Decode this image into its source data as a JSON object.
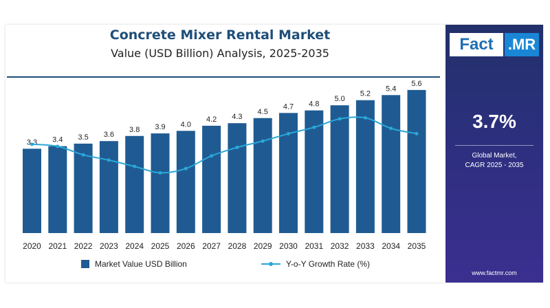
{
  "brand": {
    "logo_part1": "Fact",
    "logo_part2": ".MR",
    "website": "www.factmr.com"
  },
  "side_panel": {
    "cagr_value": "3.7%",
    "cagr_label_line1": "Global Market,",
    "cagr_label_line2": "CAGR 2025 - 2035"
  },
  "colors": {
    "bar": "#1f5b92",
    "line": "#2aa8d8",
    "title": "#1f4e79",
    "side_panel": "#2a2f7a"
  },
  "chart_data": {
    "type": "bar",
    "title": "Concrete Mixer Rental Market",
    "subtitle": "Value (USD Billion) Analysis, 2025-2035",
    "categories": [
      "2020",
      "2021",
      "2022",
      "2023",
      "2024",
      "2025",
      "2026",
      "2027",
      "2028",
      "2029",
      "2030",
      "2031",
      "2032",
      "2033",
      "2034",
      "2035"
    ],
    "series": [
      {
        "name": "Market Value USD Billion",
        "type": "bar",
        "values": [
          3.3,
          3.4,
          3.5,
          3.6,
          3.8,
          3.9,
          4.0,
          4.2,
          4.3,
          4.5,
          4.7,
          4.8,
          5.0,
          5.2,
          5.4,
          5.6
        ],
        "labels": [
          "3.3",
          "3.4",
          "3.5",
          "3.6",
          "3.8",
          "3.9",
          "4.0",
          "4.2",
          "4.3",
          "4.5",
          "4.7",
          "4.8",
          "5.0",
          "5.2",
          "5.4",
          "5.6"
        ]
      },
      {
        "name": "Y-o-Y Growth Rate (%)",
        "type": "line",
        "values": [
          3.9,
          3.7,
          2.9,
          2.4,
          1.8,
          1.2,
          1.6,
          2.8,
          3.6,
          4.2,
          4.9,
          5.5,
          6.3,
          6.4,
          5.4,
          4.9
        ]
      }
    ],
    "ylim": [
      0,
      6
    ],
    "line_ylim": [
      -4.5,
      10
    ],
    "grid": false,
    "legend_position": "bottom"
  }
}
